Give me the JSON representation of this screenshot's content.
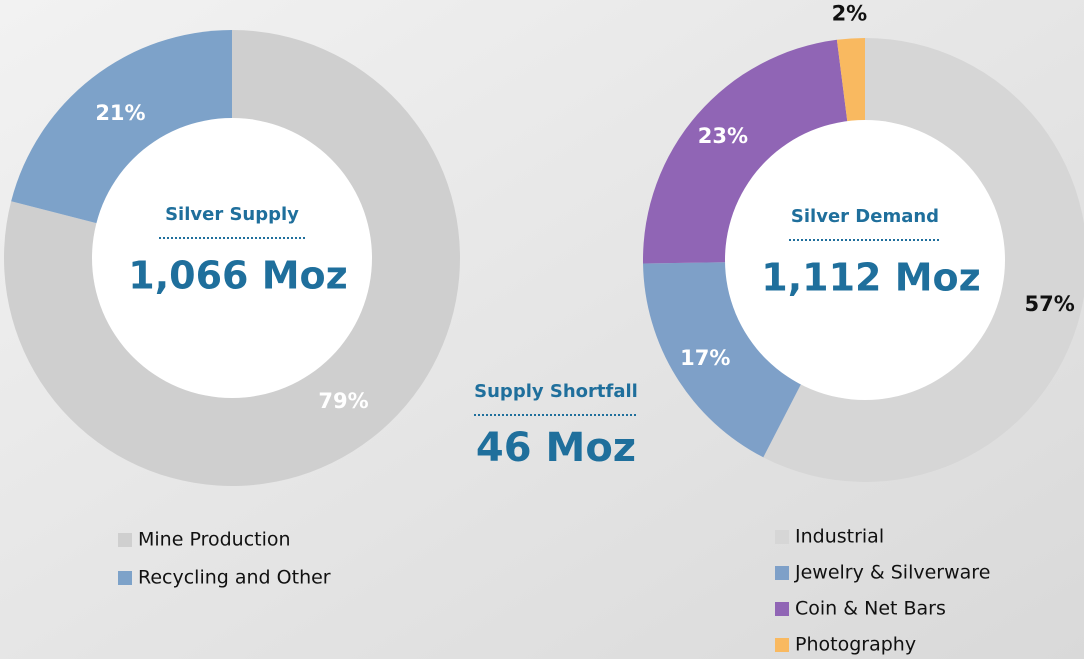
{
  "chart_data": [
    {
      "type": "pie",
      "title": "Silver Supply",
      "center_value": "1,066 Moz",
      "categories": [
        "Mine Production",
        "Recycling and Other"
      ],
      "values": [
        79,
        21
      ],
      "value_labels": [
        "79%",
        "21%"
      ],
      "colors": [
        "#cfcfcf",
        "#7da2c9"
      ],
      "label_colors": [
        "#ffffff",
        "#ffffff"
      ]
    },
    {
      "type": "pie",
      "title": "Silver Demand",
      "center_value": "1,112 Moz",
      "categories": [
        "Industrial",
        "Jewelry & Silverware",
        "Coin & Net Bars",
        "Photography"
      ],
      "values": [
        57,
        17,
        23,
        2
      ],
      "value_labels": [
        "57%",
        "17%",
        "23%",
        "2%"
      ],
      "colors": [
        "#d6d6d6",
        "#7ea0c8",
        "#9065b5",
        "#f9b960"
      ],
      "label_colors": [
        "#111111",
        "#ffffff",
        "#ffffff",
        "#111111"
      ]
    }
  ],
  "shortfall": {
    "label": "Supply Shortfall",
    "value": "46 Moz"
  }
}
